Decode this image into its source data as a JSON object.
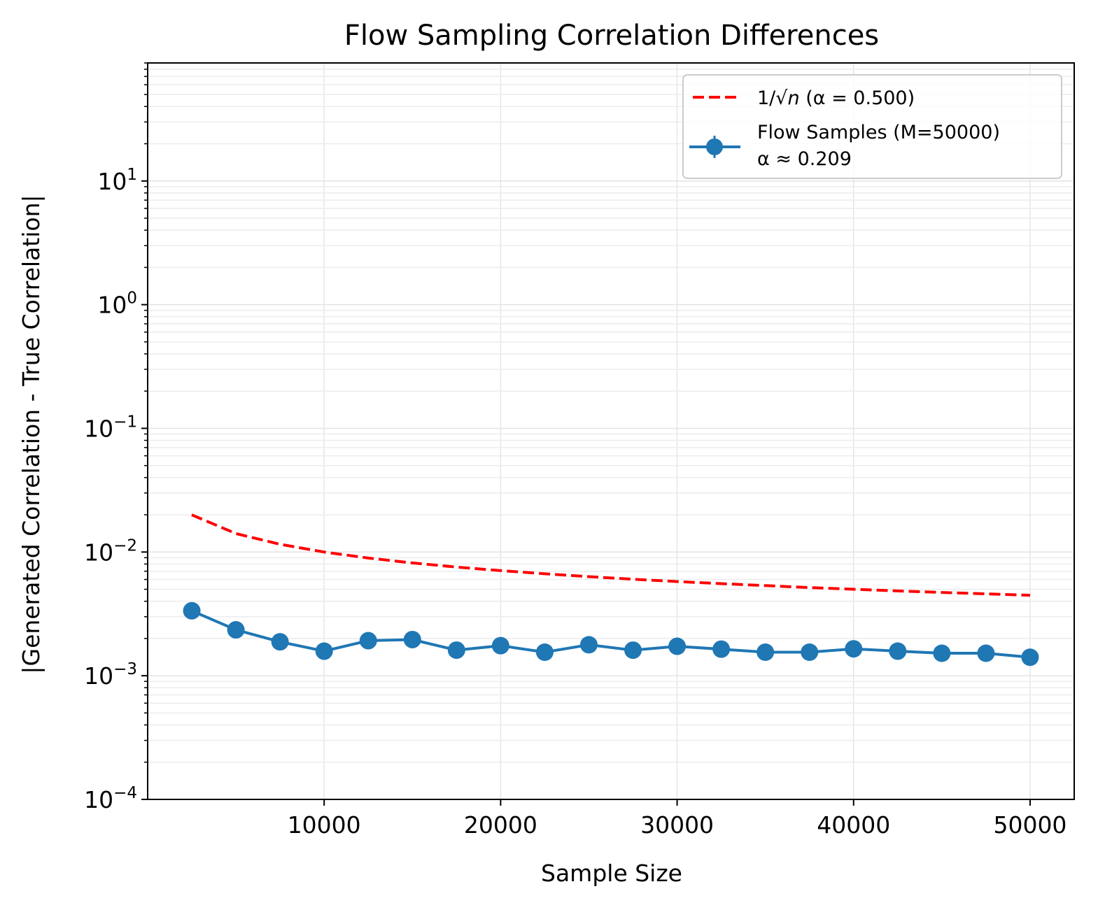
{
  "chart_data": {
    "type": "line",
    "title": "Flow Sampling Correlation Differences",
    "xlabel": "Sample Size",
    "ylabel": "|Generated Correlation - True Correlation|",
    "xscale": "linear",
    "yscale": "log",
    "xlim": [
      0,
      52500
    ],
    "ylim": [
      0.0001,
      90
    ],
    "grid": true,
    "legend_position": "top-right",
    "x_ticks": [
      {
        "value": 10000,
        "label": "10000"
      },
      {
        "value": 20000,
        "label": "20000"
      },
      {
        "value": 30000,
        "label": "30000"
      },
      {
        "value": 40000,
        "label": "40000"
      },
      {
        "value": 50000,
        "label": "50000"
      }
    ],
    "y_ticks": [
      {
        "value": 0.0001,
        "base": "10",
        "exp": "−4"
      },
      {
        "value": 0.001,
        "base": "10",
        "exp": "−3"
      },
      {
        "value": 0.01,
        "base": "10",
        "exp": "−2"
      },
      {
        "value": 0.1,
        "base": "10",
        "exp": "−1"
      },
      {
        "value": 1,
        "base": "10",
        "exp": "0"
      },
      {
        "value": 10,
        "base": "10",
        "exp": "1"
      }
    ],
    "x": [
      2500,
      5000,
      7500,
      10000,
      12500,
      15000,
      17500,
      20000,
      22500,
      25000,
      27500,
      30000,
      32500,
      35000,
      37500,
      40000,
      42500,
      45000,
      47500,
      50000
    ],
    "series": [
      {
        "name": "1/√n (α = 0.500)",
        "legend_parts": {
          "prefix": "1/√",
          "var": "n",
          "suffix": " (α = 0.500)"
        },
        "color": "#ff0000",
        "style": "dashed",
        "values": [
          0.02,
          0.0141,
          0.01155,
          0.01,
          0.00894,
          0.00816,
          0.00756,
          0.00707,
          0.00667,
          0.00632,
          0.00603,
          0.00577,
          0.00555,
          0.00535,
          0.00516,
          0.005,
          0.00485,
          0.00471,
          0.00459,
          0.00447
        ]
      },
      {
        "name": "Flow Samples (M=50000)",
        "legend_line2": "α ≈ 0.209",
        "color": "#1f77b4",
        "style": "solid-marker",
        "values": [
          0.00335,
          0.00235,
          0.00188,
          0.00158,
          0.00192,
          0.00196,
          0.00161,
          0.00175,
          0.00155,
          0.00178,
          0.00161,
          0.00173,
          0.00164,
          0.00155,
          0.00155,
          0.00165,
          0.00158,
          0.00152,
          0.00152,
          0.00141
        ]
      }
    ]
  }
}
